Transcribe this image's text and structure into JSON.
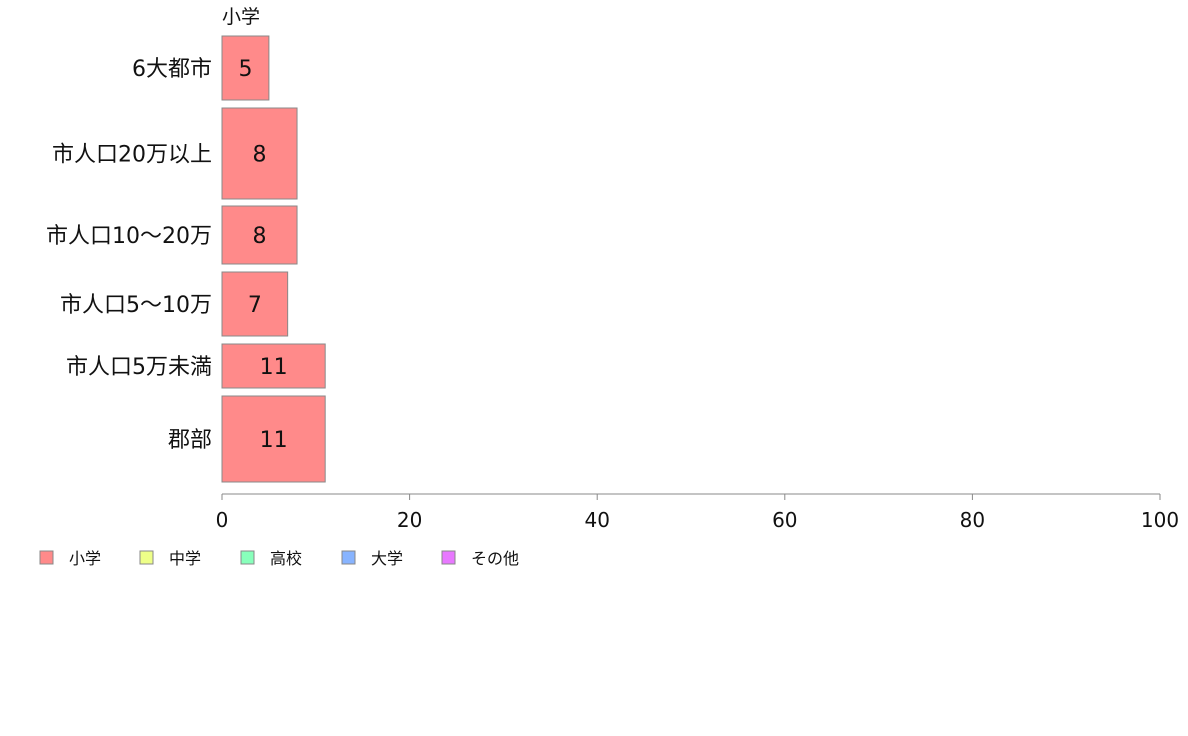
{
  "chart_data": {
    "type": "bar",
    "orientation": "horizontal",
    "stacked": true,
    "categories": [
      "6大都市",
      "市人口20万以上",
      "市人口10～20万",
      "市人口5～10万",
      "市人口5万未満",
      "郡部"
    ],
    "series": [
      {
        "name": "小学",
        "color": "#ff8a8a",
        "values": [
          5,
          8,
          8,
          7,
          11,
          11
        ]
      },
      {
        "name": "中学",
        "color": "#eeff88",
        "values": [
          0,
          0,
          0,
          0,
          0,
          0
        ]
      },
      {
        "name": "高校",
        "color": "#88ffbb",
        "values": [
          0,
          0,
          0,
          0,
          0,
          0
        ]
      },
      {
        "name": "大学",
        "color": "#88b4ff",
        "values": [
          0,
          0,
          0,
          0,
          0,
          0
        ]
      },
      {
        "name": "その他",
        "color": "#e878ff",
        "values": [
          0,
          0,
          0,
          0,
          0,
          0
        ]
      }
    ],
    "visible_series_header": "小学",
    "xlim": [
      0,
      100
    ],
    "xticks": [
      0,
      20,
      40,
      60,
      80,
      100
    ],
    "grid": false,
    "legend_position": "bottom-left",
    "bar_border_color": "#888888"
  }
}
